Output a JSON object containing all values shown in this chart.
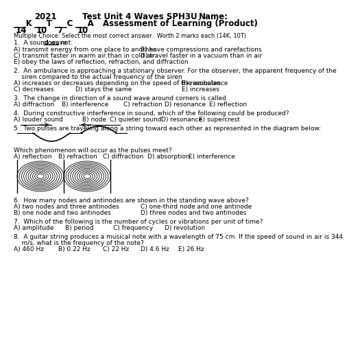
{
  "mc_header": "Multiple Choice: Select the most correct answer.  Worth 2 marks each (14K, 10T)",
  "q1_prefix": "1.  A sound wave ",
  "q1_underlined": "does not",
  "q1_suffix": ":",
  "q1a": "A) transmit energy from one place to another",
  "q1b": "B) have compressions and rarefactions",
  "q1c": "C) transmit faster in warm air than in cold air",
  "q1d": "D) travel faster in a vacuum than in air",
  "q1e": "E) obey the laws of reflection, refraction, and diffraction",
  "q2_line1": "2.  An ambulance is approaching a stationary observer. For the observer, the apparent frequency of the",
  "q2_line2": "    siren compared to the actual frequency of the siren",
  "q2a": "A) increases or decreases depending on the speed of the ambulance",
  "q2b": "B) resonates",
  "q2c": "C) decreases",
  "q2d": "D) stays the same",
  "q2e": "E) increases",
  "q3": "3.  The change in direction of a sound wave around corners is called",
  "q3a": "A) diffraction",
  "q3b": "B) interference",
  "q3c": "C) refraction",
  "q3d": "D) resonance",
  "q3e": "E) reflection",
  "q4": "4.  During constructive interference in sound, which of the following could be produced?",
  "q4a": "A) louder sound",
  "q4b": "B) node",
  "q4c": "C) quieter sound",
  "q4d": "D) resonance",
  "q4e": "E) supercrest",
  "q5": "5.  Two pulses are traveling along a string toward each other as represented in the diagram below:",
  "q5_follow": "Which phenomenon will occur as the pulses meet?",
  "q5a": "A) reflection",
  "q5b": "B) refraction",
  "q5c": "C) diffraction",
  "q5d": "D) absorption",
  "q5e": "E) interference",
  "q6": "6.  How many nodes and antinodes are shown in the standing wave above?",
  "q6a": "A) two nodes and three antinodes",
  "q6b": "C) one-third node and one antinode",
  "q6c": "B) one node and two antinodes",
  "q6d": "D) three nodes and two antinodes",
  "q7": "7.  Which of the following is the number of cycles or vibrations per unit of time?",
  "q7a": "A) amplitude",
  "q7b": "B) period",
  "q7c": "C) frequency",
  "q7d": "D) revolution",
  "q8_line1": "8.  A guitar string produces a musical note with a wavelength of 75 cm. If the speed of sound in air is 344",
  "q8_line2": "    m/s, what is the frequency of the note?",
  "q8a": "A) 460 Hz",
  "q8b": "B) 0.22 Hz",
  "q8c": "C) 22 Hz",
  "q8d": "D) 4.6 Hz",
  "q8e": "E) 26 Hz",
  "bg_color": "#ffffff",
  "text_color": "#000000",
  "font_size": 6.5,
  "header_font_size": 8.5
}
